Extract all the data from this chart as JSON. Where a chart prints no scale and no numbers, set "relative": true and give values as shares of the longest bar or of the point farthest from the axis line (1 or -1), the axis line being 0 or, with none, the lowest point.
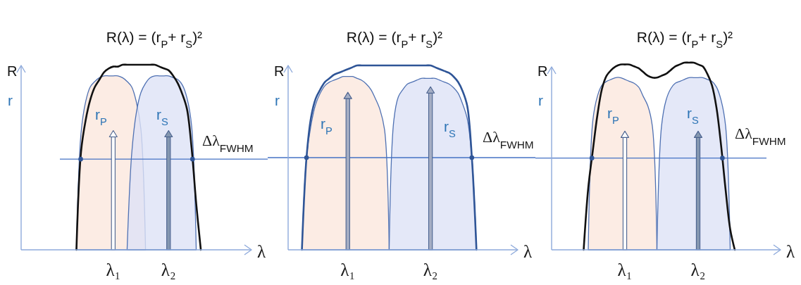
{
  "chart_data": [
    {
      "type": "area",
      "title": "R(λ) = (r$_{P}$+ r$_{S}$)²",
      "xlabel": "λ",
      "ylabel": "R",
      "annotations": [
        "r"
      ],
      "relative": true,
      "categories": [
        null,
        null,
        null,
        null,
        null,
        null,
        null,
        null,
        null,
        null,
        null,
        null,
        null,
        null,
        null,
        null,
        null,
        null,
        null,
        null,
        "λ₁",
        null,
        null,
        null,
        null,
        null,
        null,
        null,
        null,
        null,
        null,
        null,
        "λ₂",
        null,
        null,
        null,
        null,
        null,
        null,
        null,
        null,
        null,
        null,
        null,
        null,
        null,
        null,
        null,
        null,
        null,
        null
      ],
      "series": [
        {
          "name": "r$_{P}$",
          "color": "#fbe7dd",
          "values": [
            null,
            null,
            null,
            null,
            null,
            null,
            null,
            null,
            null,
            null,
            null,
            null,
            0,
            0.63,
            0.8,
            0.88,
            0.91,
            0.93,
            0.94,
            0.94,
            0.94,
            0.94,
            0.93,
            0.91,
            0.88,
            0.8,
            0.65,
            0,
            null,
            null,
            null,
            null,
            null,
            null,
            null,
            null,
            null,
            null,
            null,
            null,
            null,
            null,
            null,
            null,
            null,
            null,
            null,
            null,
            null,
            null,
            null
          ]
        },
        {
          "name": "r$_{S}$",
          "color": "#dde2f6",
          "values": [
            null,
            null,
            null,
            null,
            null,
            null,
            null,
            null,
            null,
            null,
            null,
            null,
            null,
            null,
            null,
            null,
            null,
            null,
            null,
            null,
            null,
            null,
            null,
            0,
            0.52,
            0.74,
            0.85,
            0.9,
            0.93,
            0.94,
            0.94,
            0.94,
            0.94,
            0.93,
            0.92,
            0.89,
            0.82,
            0.67,
            0,
            null,
            null,
            null,
            null,
            null,
            null,
            null,
            null,
            null,
            null,
            null,
            null
          ]
        },
        {
          "type": "line",
          "color": "#111111",
          "values": [
            null,
            null,
            null,
            null,
            null,
            null,
            null,
            null,
            null,
            null,
            null,
            null,
            0,
            0.53,
            0.7,
            0.81,
            0.88,
            0.92,
            0.96,
            0.98,
            0.99,
            0.99,
            1,
            1,
            1,
            1,
            1,
            1,
            1,
            1,
            0.99,
            0.98,
            0.97,
            0.94,
            0.9,
            0.84,
            0.76,
            0.55,
            0.25,
            0,
            null,
            null,
            null,
            null,
            null,
            null,
            null,
            null,
            null,
            null,
            null
          ]
        },
        {
          "type": "bar",
          "color": "#ffffff",
          "values": [
            null,
            null,
            null,
            null,
            null,
            null,
            null,
            null,
            null,
            null,
            null,
            null,
            null,
            null,
            null,
            null,
            null,
            null,
            null,
            null,
            0.61,
            null,
            null,
            null,
            null,
            null,
            null,
            null,
            null,
            null,
            null,
            null,
            null,
            null,
            null,
            null,
            null,
            null,
            null,
            null,
            null,
            null,
            null,
            null,
            null,
            null,
            null,
            null,
            null,
            null,
            null
          ]
        },
        {
          "type": "bar",
          "color": "#8497b0",
          "values": [
            null,
            null,
            null,
            null,
            null,
            null,
            null,
            null,
            null,
            null,
            null,
            null,
            null,
            null,
            null,
            null,
            null,
            null,
            null,
            null,
            null,
            null,
            null,
            null,
            null,
            null,
            null,
            null,
            null,
            null,
            null,
            null,
            0.61,
            null,
            null,
            null,
            null,
            null,
            null,
            null,
            null,
            null,
            null,
            null,
            null,
            null,
            null,
            null,
            null,
            null,
            null
          ]
        }
      ],
      "ref_lines": [
        {
          "axis": "y",
          "value": 0.49,
          "label": "Δλ$_{FWHM}$",
          "color": "#4472c4"
        }
      ]
    },
    {
      "type": "area",
      "title": "R(λ) = (r$_{P}$+ r$_{S}$)²",
      "xlabel": "λ",
      "ylabel": "R",
      "annotations": [
        "r"
      ],
      "relative": true,
      "categories": [
        null,
        null,
        null,
        null,
        null,
        null,
        null,
        null,
        null,
        null,
        null,
        null,
        null,
        "λ₁",
        null,
        null,
        null,
        null,
        null,
        null,
        null,
        null,
        null,
        null,
        null,
        null,
        null,
        null,
        null,
        null,
        null,
        "λ₂",
        null,
        null,
        null,
        null,
        null,
        null,
        null,
        null,
        null,
        null,
        null,
        null,
        null,
        null,
        null,
        null,
        null,
        null,
        null
      ],
      "series": [
        {
          "name": "r$_{P}$",
          "color": "#fbe7dd",
          "values": [
            null,
            null,
            null,
            0,
            0.5,
            0.68,
            0.79,
            0.85,
            0.89,
            0.91,
            0.92,
            0.93,
            0.94,
            0.94,
            0.94,
            0.93,
            0.92,
            0.9,
            0.87,
            0.82,
            0.76,
            0.65,
            0,
            null,
            null,
            null,
            null,
            null,
            null,
            null,
            null,
            null,
            null,
            null,
            null,
            null,
            null,
            null,
            null,
            null,
            null,
            null,
            null,
            null,
            null,
            null,
            null,
            null,
            null,
            null,
            null
          ]
        },
        {
          "name": "r$_{S}$",
          "color": "#dde2f6",
          "values": [
            null,
            null,
            null,
            null,
            null,
            null,
            null,
            null,
            null,
            null,
            null,
            null,
            null,
            null,
            null,
            null,
            null,
            null,
            null,
            null,
            null,
            null,
            0,
            0.7,
            0.83,
            0.87,
            0.9,
            0.91,
            0.92,
            0.93,
            0.93,
            0.93,
            0.93,
            0.92,
            0.91,
            0.9,
            0.88,
            0.85,
            0.79,
            0.71,
            0.5,
            0,
            null,
            null,
            null,
            null,
            null,
            null,
            null,
            null,
            null
          ]
        },
        {
          "type": "line",
          "color": "#2f5597",
          "values": [
            null,
            null,
            null,
            0,
            0.5,
            0.72,
            0.82,
            0.87,
            0.91,
            0.93,
            0.95,
            0.96,
            0.97,
            0.98,
            0.99,
            1,
            1,
            1,
            1,
            1,
            1,
            1,
            1,
            1,
            1,
            1,
            1,
            1,
            1,
            1,
            1,
            1,
            0.99,
            0.98,
            0.97,
            0.96,
            0.94,
            0.91,
            0.86,
            0.78,
            0.5,
            0,
            null,
            null,
            null,
            null,
            null,
            null,
            null,
            null,
            null
          ]
        },
        {
          "type": "bar",
          "color": "#a5aec4",
          "values": [
            null,
            null,
            null,
            null,
            null,
            null,
            null,
            null,
            null,
            null,
            null,
            null,
            null,
            0.82,
            null,
            null,
            null,
            null,
            null,
            null,
            null,
            null,
            null,
            null,
            null,
            null,
            null,
            null,
            null,
            null,
            null,
            null,
            null,
            null,
            null,
            null,
            null,
            null,
            null,
            null,
            null,
            null,
            null,
            null,
            null,
            null,
            null,
            null,
            null,
            null,
            null
          ]
        },
        {
          "type": "bar",
          "color": "#a5aec4",
          "values": [
            null,
            null,
            null,
            null,
            null,
            null,
            null,
            null,
            null,
            null,
            null,
            null,
            null,
            null,
            null,
            null,
            null,
            null,
            null,
            null,
            null,
            null,
            null,
            null,
            null,
            null,
            null,
            null,
            null,
            null,
            null,
            0.85,
            null,
            null,
            null,
            null,
            null,
            null,
            null,
            null,
            null,
            null,
            null,
            null,
            null,
            null,
            null,
            null,
            null,
            null,
            null
          ]
        }
      ],
      "ref_lines": [
        {
          "axis": "y",
          "value": 0.5,
          "label": "Δλ$_{FWHM}$",
          "color": "#4472c4"
        }
      ]
    },
    {
      "type": "area",
      "title": "R(λ) = (r$_{P}$+ r$_{S}$)²",
      "xlabel": "λ",
      "ylabel": "R",
      "annotations": [
        "r"
      ],
      "relative": true,
      "categories": [
        null,
        null,
        null,
        null,
        null,
        null,
        null,
        null,
        null,
        null,
        null,
        null,
        null,
        null,
        null,
        null,
        "λ₁",
        null,
        null,
        null,
        null,
        null,
        null,
        null,
        null,
        null,
        null,
        null,
        null,
        null,
        null,
        null,
        "λ₂",
        null,
        null,
        null,
        null,
        null,
        null,
        null,
        null,
        null,
        null,
        null,
        null,
        null,
        null,
        null,
        null,
        null,
        null
      ],
      "series": [
        {
          "name": "r$_{P}$",
          "color": "#fbe7dd",
          "values": [
            null,
            null,
            null,
            null,
            null,
            null,
            null,
            null,
            0,
            0.69,
            0.82,
            0.88,
            0.9,
            0.91,
            0.92,
            0.92,
            0.91,
            0.9,
            0.89,
            0.87,
            0.82,
            0.77,
            0.66,
            0,
            null,
            null,
            null,
            null,
            null,
            null,
            null,
            null,
            null,
            null,
            null,
            null,
            null,
            null,
            null,
            null,
            null,
            null,
            null,
            null,
            null,
            null,
            null,
            null,
            null,
            null,
            null
          ]
        },
        {
          "name": "r$_{S}$",
          "color": "#dde2f6",
          "values": [
            null,
            null,
            null,
            null,
            null,
            null,
            null,
            null,
            null,
            null,
            null,
            null,
            null,
            null,
            null,
            null,
            null,
            null,
            null,
            null,
            null,
            null,
            null,
            0,
            0.66,
            0.8,
            0.86,
            0.89,
            0.9,
            0.91,
            0.92,
            0.92,
            0.92,
            0.92,
            0.91,
            0.9,
            0.87,
            0.8,
            0.66,
            0,
            null,
            null,
            null,
            null,
            null,
            null,
            null,
            null,
            null,
            null,
            null
          ]
        },
        {
          "type": "line",
          "color": "#111111",
          "values": [
            null,
            null,
            null,
            null,
            null,
            null,
            null,
            0,
            0.33,
            0.53,
            0.72,
            0.86,
            0.93,
            0.96,
            0.98,
            0.99,
            0.99,
            0.99,
            0.98,
            0.97,
            0.95,
            0.93,
            0.92,
            0.92,
            0.93,
            0.94,
            0.96,
            0.98,
            0.99,
            1,
            1,
            1,
            0.99,
            0.98,
            0.94,
            0.88,
            0.76,
            0.56,
            0.32,
            0.11,
            0,
            null,
            null,
            null,
            null,
            null,
            null,
            null,
            null,
            null,
            null
          ]
        },
        {
          "type": "bar",
          "color": "#ffffff",
          "values": [
            null,
            null,
            null,
            null,
            null,
            null,
            null,
            null,
            null,
            null,
            null,
            null,
            null,
            null,
            null,
            null,
            0.6,
            null,
            null,
            null,
            null,
            null,
            null,
            null,
            null,
            null,
            null,
            null,
            null,
            null,
            null,
            null,
            null,
            null,
            null,
            null,
            null,
            null,
            null,
            null,
            null,
            null,
            null,
            null,
            null,
            null,
            null,
            null,
            null,
            null,
            null
          ]
        },
        {
          "type": "bar",
          "color": "#8497b0",
          "values": [
            null,
            null,
            null,
            null,
            null,
            null,
            null,
            null,
            null,
            null,
            null,
            null,
            null,
            null,
            null,
            null,
            null,
            null,
            null,
            null,
            null,
            null,
            null,
            null,
            null,
            null,
            null,
            null,
            null,
            null,
            null,
            null,
            0.6,
            null,
            null,
            null,
            null,
            null,
            null,
            null,
            null,
            null,
            null,
            null,
            null,
            null,
            null,
            null,
            null,
            null,
            null
          ]
        }
      ],
      "ref_lines": [
        {
          "axis": "y",
          "value": 0.49,
          "label": "Δλ$_{FWHM}$",
          "color": "#4472c4"
        }
      ]
    }
  ]
}
